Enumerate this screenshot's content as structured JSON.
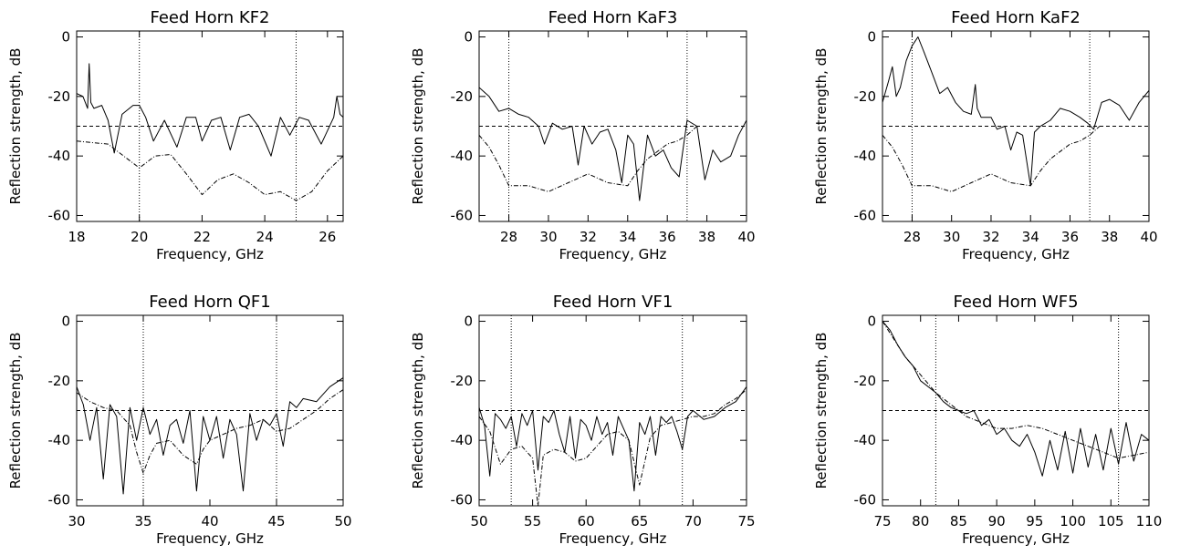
{
  "chart_data": [
    {
      "type": "line",
      "title": "Feed Horn KF2",
      "xlabel": "Frequency, GHz",
      "ylabel": "Reflection strength, dB",
      "xlim": [
        18,
        26.5
      ],
      "ylim": [
        -62,
        2
      ],
      "xticks": [
        "18",
        "20",
        "22",
        "24",
        "26"
      ],
      "yticks": [
        "0",
        "-20",
        "-40",
        "-60"
      ],
      "reference_line_db": -30,
      "band_edges_ghz": [
        20,
        25
      ],
      "series": [
        {
          "style": "solid",
          "x": [
            18,
            18.2,
            18.35,
            18.4,
            18.45,
            18.55,
            18.8,
            19.0,
            19.2,
            19.45,
            19.8,
            20.0,
            20.2,
            20.45,
            20.8,
            21.2,
            21.5,
            21.8,
            22.0,
            22.3,
            22.6,
            22.9,
            23.2,
            23.5,
            23.8,
            24.2,
            24.5,
            24.8,
            25.1,
            25.4,
            25.8,
            26.2,
            26.3,
            26.4,
            26.5
          ],
          "y": [
            -19,
            -20,
            -24,
            -9,
            -22,
            -24,
            -23,
            -28,
            -39,
            -26,
            -23,
            -23,
            -27,
            -35,
            -28,
            -37,
            -27,
            -27,
            -35,
            -28,
            -27,
            -38,
            -27,
            -26,
            -30,
            -40,
            -27,
            -33,
            -27,
            -28,
            -36,
            -27,
            -20,
            -26,
            -27
          ]
        },
        {
          "style": "dashdot",
          "x": [
            18,
            18.5,
            19.0,
            19.5,
            20.0,
            20.5,
            21.0,
            21.5,
            22.0,
            22.5,
            23.0,
            23.5,
            24.0,
            24.5,
            25.0,
            25.5,
            26.0,
            26.5
          ],
          "y": [
            -35,
            -35.5,
            -36,
            -40,
            -44,
            -40,
            -39.5,
            -46,
            -53,
            -48,
            -46,
            -49,
            -53,
            -52,
            -55,
            -52,
            -45,
            -40
          ]
        }
      ]
    },
    {
      "type": "line",
      "title": "Feed Horn KaF3",
      "xlabel": "Frequency, GHz",
      "ylabel": "Reflection strength, dB",
      "xlim": [
        26.5,
        40
      ],
      "ylim": [
        -62,
        2
      ],
      "xticks": [
        "28",
        "30",
        "32",
        "34",
        "36",
        "38",
        "40"
      ],
      "yticks": [
        "0",
        "-20",
        "-40",
        "-60"
      ],
      "reference_line_db": -30,
      "band_edges_ghz": [
        28,
        37
      ],
      "series": [
        {
          "style": "solid",
          "x": [
            26.5,
            27.0,
            27.5,
            28.0,
            28.5,
            29.0,
            29.5,
            29.8,
            30.2,
            30.7,
            31.2,
            31.5,
            31.8,
            32.2,
            32.6,
            33.0,
            33.4,
            33.7,
            34.0,
            34.3,
            34.6,
            35.0,
            35.4,
            35.8,
            36.2,
            36.6,
            37.0,
            37.5,
            37.9,
            38.3,
            38.7,
            39.2,
            39.6,
            40.0
          ],
          "y": [
            -17,
            -20,
            -25,
            -24,
            -26,
            -27,
            -30,
            -36,
            -29,
            -31,
            -30,
            -43,
            -30,
            -36,
            -32,
            -31,
            -38,
            -49,
            -33,
            -36,
            -55,
            -33,
            -40,
            -38,
            -44,
            -47,
            -28,
            -30,
            -48,
            -38,
            -42,
            -40,
            -33,
            -28
          ]
        },
        {
          "style": "dashdot",
          "x": [
            26.5,
            27.0,
            27.5,
            28.0,
            29.0,
            29.5,
            30.0,
            31.0,
            32.0,
            33.0,
            34.0,
            34.5,
            35.0,
            36.0,
            36.5,
            37.0,
            37.5
          ],
          "y": [
            -33,
            -37,
            -43,
            -50,
            -50,
            -51,
            -52,
            -49,
            -46,
            -49,
            -50,
            -45,
            -41,
            -36,
            -35,
            -33,
            -30
          ]
        }
      ]
    },
    {
      "type": "line",
      "title": "Feed Horn KaF2",
      "xlabel": "Frequency, GHz",
      "ylabel": "Reflection strength, dB",
      "xlim": [
        26.5,
        40
      ],
      "ylim": [
        -62,
        2
      ],
      "xticks": [
        "28",
        "30",
        "32",
        "34",
        "36",
        "38",
        "40"
      ],
      "yticks": [
        "0",
        "-20",
        "-40",
        "-60"
      ],
      "reference_line_db": -30,
      "band_edges_ghz": [
        28,
        37
      ],
      "series": [
        {
          "style": "solid",
          "x": [
            26.5,
            26.8,
            27.0,
            27.2,
            27.4,
            27.7,
            28.0,
            28.3,
            28.6,
            29.0,
            29.4,
            29.8,
            30.2,
            30.6,
            31.0,
            31.2,
            31.3,
            31.5,
            32.0,
            32.3,
            32.7,
            33.0,
            33.3,
            33.6,
            34.0,
            34.2,
            34.5,
            35.0,
            35.5,
            36.0,
            36.5,
            36.9,
            37.2,
            37.6,
            38.0,
            38.5,
            39.0,
            39.5,
            40.0
          ],
          "y": [
            -22,
            -15,
            -10,
            -20,
            -17,
            -8,
            -3,
            0,
            -5,
            -12,
            -19,
            -17,
            -22,
            -25,
            -26,
            -16,
            -24,
            -27,
            -27,
            -31,
            -30,
            -38,
            -32,
            -33,
            -50,
            -32,
            -30,
            -28,
            -24,
            -25,
            -27,
            -29,
            -31,
            -22,
            -21,
            -23,
            -28,
            -22,
            -18
          ]
        },
        {
          "style": "dashdot",
          "x": [
            26.5,
            27.0,
            27.5,
            28.0,
            29.0,
            29.5,
            30.0,
            31.0,
            32.0,
            33.0,
            34.0,
            34.5,
            35.0,
            36.0,
            36.5,
            37.0,
            37.5
          ],
          "y": [
            -33,
            -37,
            -43,
            -50,
            -50,
            -51,
            -52,
            -49,
            -46,
            -49,
            -50,
            -45,
            -41,
            -36,
            -35,
            -33,
            -30
          ]
        }
      ]
    },
    {
      "type": "line",
      "title": "Feed Horn QF1",
      "xlabel": "Frequency, GHz",
      "ylabel": "Reflection strength, dB",
      "xlim": [
        30,
        50
      ],
      "ylim": [
        -62,
        2
      ],
      "xticks": [
        "30",
        "35",
        "40",
        "45",
        "50"
      ],
      "yticks": [
        "0",
        "-20",
        "-40",
        "-60"
      ],
      "reference_line_db": -30,
      "band_edges_ghz": [
        35,
        45
      ],
      "series": [
        {
          "style": "solid",
          "x": [
            30,
            30.5,
            31.0,
            31.5,
            32.0,
            32.5,
            33.0,
            33.5,
            34.0,
            34.5,
            35.0,
            35.5,
            36.0,
            36.5,
            37.0,
            37.5,
            38.0,
            38.5,
            39.0,
            39.5,
            40.0,
            40.5,
            41.0,
            41.5,
            42.0,
            42.5,
            43.0,
            43.5,
            44.0,
            44.5,
            45.0,
            45.5,
            46.0,
            46.5,
            47.0,
            48.0,
            49.0,
            50.0
          ],
          "y": [
            -22,
            -28,
            -40,
            -29,
            -53,
            -28,
            -32,
            -58,
            -29,
            -40,
            -29,
            -38,
            -33,
            -45,
            -35,
            -33,
            -41,
            -30,
            -57,
            -32,
            -40,
            -32,
            -46,
            -33,
            -38,
            -57,
            -31,
            -40,
            -33,
            -35,
            -31,
            -42,
            -27,
            -29,
            -26,
            -27,
            -22,
            -19
          ]
        },
        {
          "style": "dashdot",
          "x": [
            30,
            31.0,
            32.0,
            33.0,
            34.0,
            34.5,
            35.0,
            35.5,
            36.0,
            37.0,
            38.0,
            39.0,
            39.5,
            40.0,
            41.0,
            42.0,
            43.0,
            44.0,
            45.0,
            46.0,
            47.0,
            48.0,
            49.0,
            50.0
          ],
          "y": [
            -24,
            -27,
            -29,
            -30,
            -35,
            -44,
            -51,
            -45,
            -41,
            -40,
            -45,
            -48,
            -43,
            -40,
            -38,
            -36,
            -35,
            -33,
            -37,
            -36,
            -33,
            -30,
            -26,
            -23
          ]
        }
      ]
    },
    {
      "type": "line",
      "title": "Feed Horn VF1",
      "xlabel": "Frequency, GHz",
      "ylabel": "Reflection strength, dB",
      "xlim": [
        50,
        75
      ],
      "ylim": [
        -62,
        2
      ],
      "xticks": [
        "50",
        "55",
        "60",
        "65",
        "70",
        "75"
      ],
      "yticks": [
        "0",
        "-20",
        "-40",
        "-60"
      ],
      "reference_line_db": -30,
      "band_edges_ghz": [
        53,
        69
      ],
      "series": [
        {
          "style": "solid",
          "x": [
            50,
            50.5,
            51.0,
            51.5,
            52.0,
            52.5,
            53.0,
            53.5,
            54.0,
            54.5,
            55.0,
            55.5,
            56.0,
            56.5,
            57.0,
            57.5,
            58.0,
            58.5,
            59.0,
            59.5,
            60.0,
            60.5,
            61.0,
            61.5,
            62.0,
            62.5,
            63.0,
            63.5,
            64.0,
            64.5,
            65.0,
            65.5,
            66.0,
            66.5,
            67.0,
            67.5,
            68.0,
            68.5,
            69.0,
            69.5,
            70.0,
            71.0,
            72.0,
            73.0,
            74.0,
            75.0
          ],
          "y": [
            -29,
            -35,
            -52,
            -31,
            -33,
            -36,
            -32,
            -42,
            -31,
            -35,
            -30,
            -50,
            -32,
            -34,
            -30,
            -38,
            -44,
            -32,
            -46,
            -33,
            -35,
            -40,
            -32,
            -38,
            -34,
            -45,
            -32,
            -36,
            -40,
            -57,
            -34,
            -38,
            -32,
            -45,
            -32,
            -34,
            -32,
            -37,
            -43,
            -32,
            -30,
            -33,
            -32,
            -29,
            -27,
            -22
          ]
        },
        {
          "style": "dashdot",
          "x": [
            50,
            51.0,
            52.0,
            53.0,
            54.0,
            55.0,
            55.5,
            56.0,
            57.0,
            58.0,
            59.0,
            60.0,
            61.0,
            62.0,
            63.0,
            64.0,
            65.0,
            66.0,
            67.0,
            68.0,
            69.0,
            70.0,
            71.0,
            72.0,
            73.0,
            74.0,
            75.0
          ],
          "y": [
            -32,
            -37,
            -48,
            -43,
            -42,
            -46,
            -62,
            -45,
            -43,
            -44,
            -47,
            -46,
            -42,
            -38,
            -37,
            -40,
            -55,
            -39,
            -35,
            -34,
            -33,
            -32,
            -32,
            -31,
            -28,
            -26,
            -23
          ]
        }
      ]
    },
    {
      "type": "line",
      "title": "Feed Horn WF5",
      "xlabel": "Frequency, GHz",
      "ylabel": "Reflection strength, dB",
      "xlim": [
        75,
        110
      ],
      "ylim": [
        -62,
        2
      ],
      "xticks": [
        "75",
        "80",
        "85",
        "90",
        "95",
        "100",
        "105",
        "110"
      ],
      "yticks": [
        "0",
        "-20",
        "-40",
        "-60"
      ],
      "reference_line_db": -30,
      "band_edges_ghz": [
        82,
        106
      ],
      "series": [
        {
          "style": "solid",
          "x": [
            75,
            76.0,
            77.0,
            78.0,
            79.0,
            80.0,
            81.0,
            82.0,
            83.0,
            84.0,
            85.0,
            86.0,
            87.0,
            88.0,
            89.0,
            90.0,
            91.0,
            92.0,
            93.0,
            94.0,
            95.0,
            96.0,
            97.0,
            98.0,
            99.0,
            100.0,
            101.0,
            102.0,
            103.0,
            104.0,
            105.0,
            106.0,
            107.0,
            108.0,
            109.0,
            110.0
          ],
          "y": [
            0,
            -3,
            -8,
            -12,
            -15,
            -20,
            -22,
            -24,
            -27,
            -29,
            -30,
            -31,
            -30,
            -35,
            -33,
            -38,
            -36,
            -40,
            -42,
            -38,
            -44,
            -52,
            -40,
            -50,
            -37,
            -51,
            -36,
            -49,
            -38,
            -50,
            -36,
            -48,
            -34,
            -47,
            -38,
            -40
          ]
        },
        {
          "style": "dashdot",
          "x": [
            75,
            76.0,
            78.0,
            80.0,
            82.0,
            84.0,
            86.0,
            88.0,
            90.0,
            92.0,
            94.0,
            96.0,
            98.0,
            100.0,
            102.0,
            104.0,
            106.0,
            108.0,
            110.0
          ],
          "y": [
            0,
            -4,
            -12,
            -18,
            -24,
            -28,
            -32,
            -34,
            -36,
            -36,
            -35,
            -36,
            -38,
            -40,
            -42,
            -44,
            -46,
            -45,
            -44
          ]
        }
      ]
    }
  ]
}
